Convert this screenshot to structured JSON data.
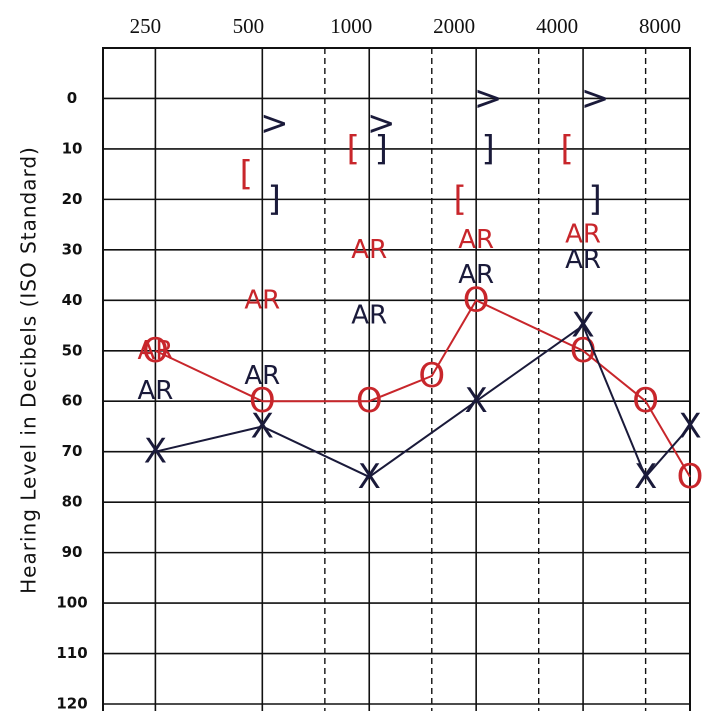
{
  "chart_data": {
    "type": "line",
    "ylabel": "Hearing Level in Decibels (ISO Standard)",
    "xscale": "log",
    "xlim": [
      178,
      8000
    ],
    "xticks": [
      250,
      500,
      1000,
      2000,
      4000,
      8000
    ],
    "minor_xticks": [
      750,
      1500,
      3000,
      6000
    ],
    "ylim": [
      -10,
      120
    ],
    "y_inverted": true,
    "yticks": [
      0,
      10,
      20,
      30,
      40,
      50,
      60,
      70,
      80,
      90,
      100,
      110,
      120
    ],
    "grid": true,
    "series": [
      {
        "marker": "O",
        "color": "#c8262b",
        "line": true,
        "x": [
          250,
          500,
          1000,
          1500,
          2000,
          4000,
          6000,
          8000
        ],
        "values": [
          50,
          60,
          60,
          55,
          40,
          50,
          60,
          75
        ]
      },
      {
        "marker": "X",
        "color": "#1a1a3a",
        "line": true,
        "x": [
          250,
          500,
          1000,
          2000,
          4000,
          6000,
          8000
        ],
        "values": [
          70,
          65,
          75,
          60,
          45,
          75,
          65
        ]
      },
      {
        "marker": "[",
        "color": "#c8262b",
        "line": false,
        "x": [
          500,
          1000,
          2000,
          4000
        ],
        "values": [
          15,
          10,
          20,
          10
        ]
      },
      {
        "marker": "]",
        "color": "#1a1a3a",
        "line": false,
        "x": [
          500,
          1000,
          2000,
          4000
        ],
        "values": [
          20,
          10,
          10,
          20
        ]
      },
      {
        "marker": ">",
        "color": "#1a1a3a",
        "line": false,
        "x": [
          500,
          1000,
          2000,
          4000
        ],
        "values": [
          5,
          5,
          0,
          0
        ]
      },
      {
        "marker": "AR",
        "color": "#c8262b",
        "line": false,
        "x": [
          250,
          500,
          1000,
          2000,
          4000
        ],
        "values": [
          50,
          40,
          30,
          28,
          27
        ]
      },
      {
        "marker": "AR",
        "color": "#1a1a3a",
        "line": false,
        "x": [
          250,
          500,
          1000,
          2000,
          4000
        ],
        "values": [
          58,
          55,
          43,
          35,
          32
        ]
      }
    ]
  }
}
